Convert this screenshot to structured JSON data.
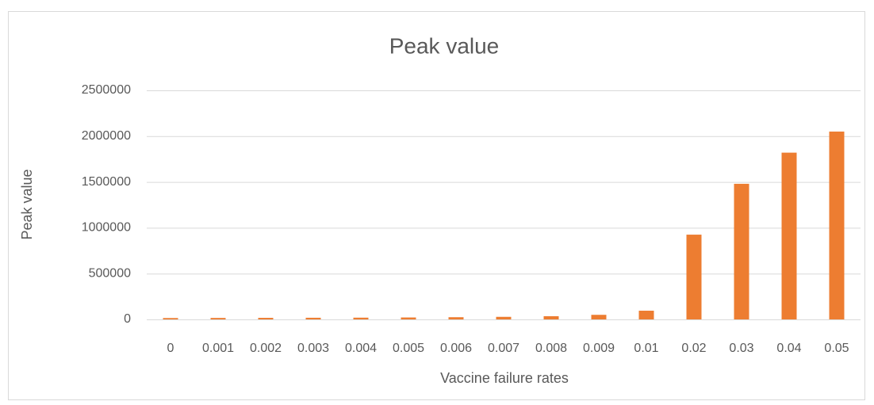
{
  "chart_data": {
    "type": "bar",
    "title": "Peak value",
    "x_label": "Vaccine failure rates",
    "y_label": "Peak value",
    "categories": [
      "0",
      "0.001",
      "0.002",
      "0.003",
      "0.004",
      "0.005",
      "0.006",
      "0.007",
      "0.008",
      "0.009",
      "0.01",
      "0.02",
      "0.03",
      "0.04",
      "0.05"
    ],
    "values": [
      15000,
      16000,
      17000,
      18000,
      19000,
      21000,
      24000,
      28000,
      35000,
      50000,
      95000,
      925000,
      1480000,
      1820000,
      2050000
    ],
    "color": "#ed7d31",
    "ylim": [
      0,
      2500000
    ],
    "yticks": [
      0,
      500000,
      1000000,
      1500000,
      2000000,
      2500000
    ],
    "grid": true
  }
}
